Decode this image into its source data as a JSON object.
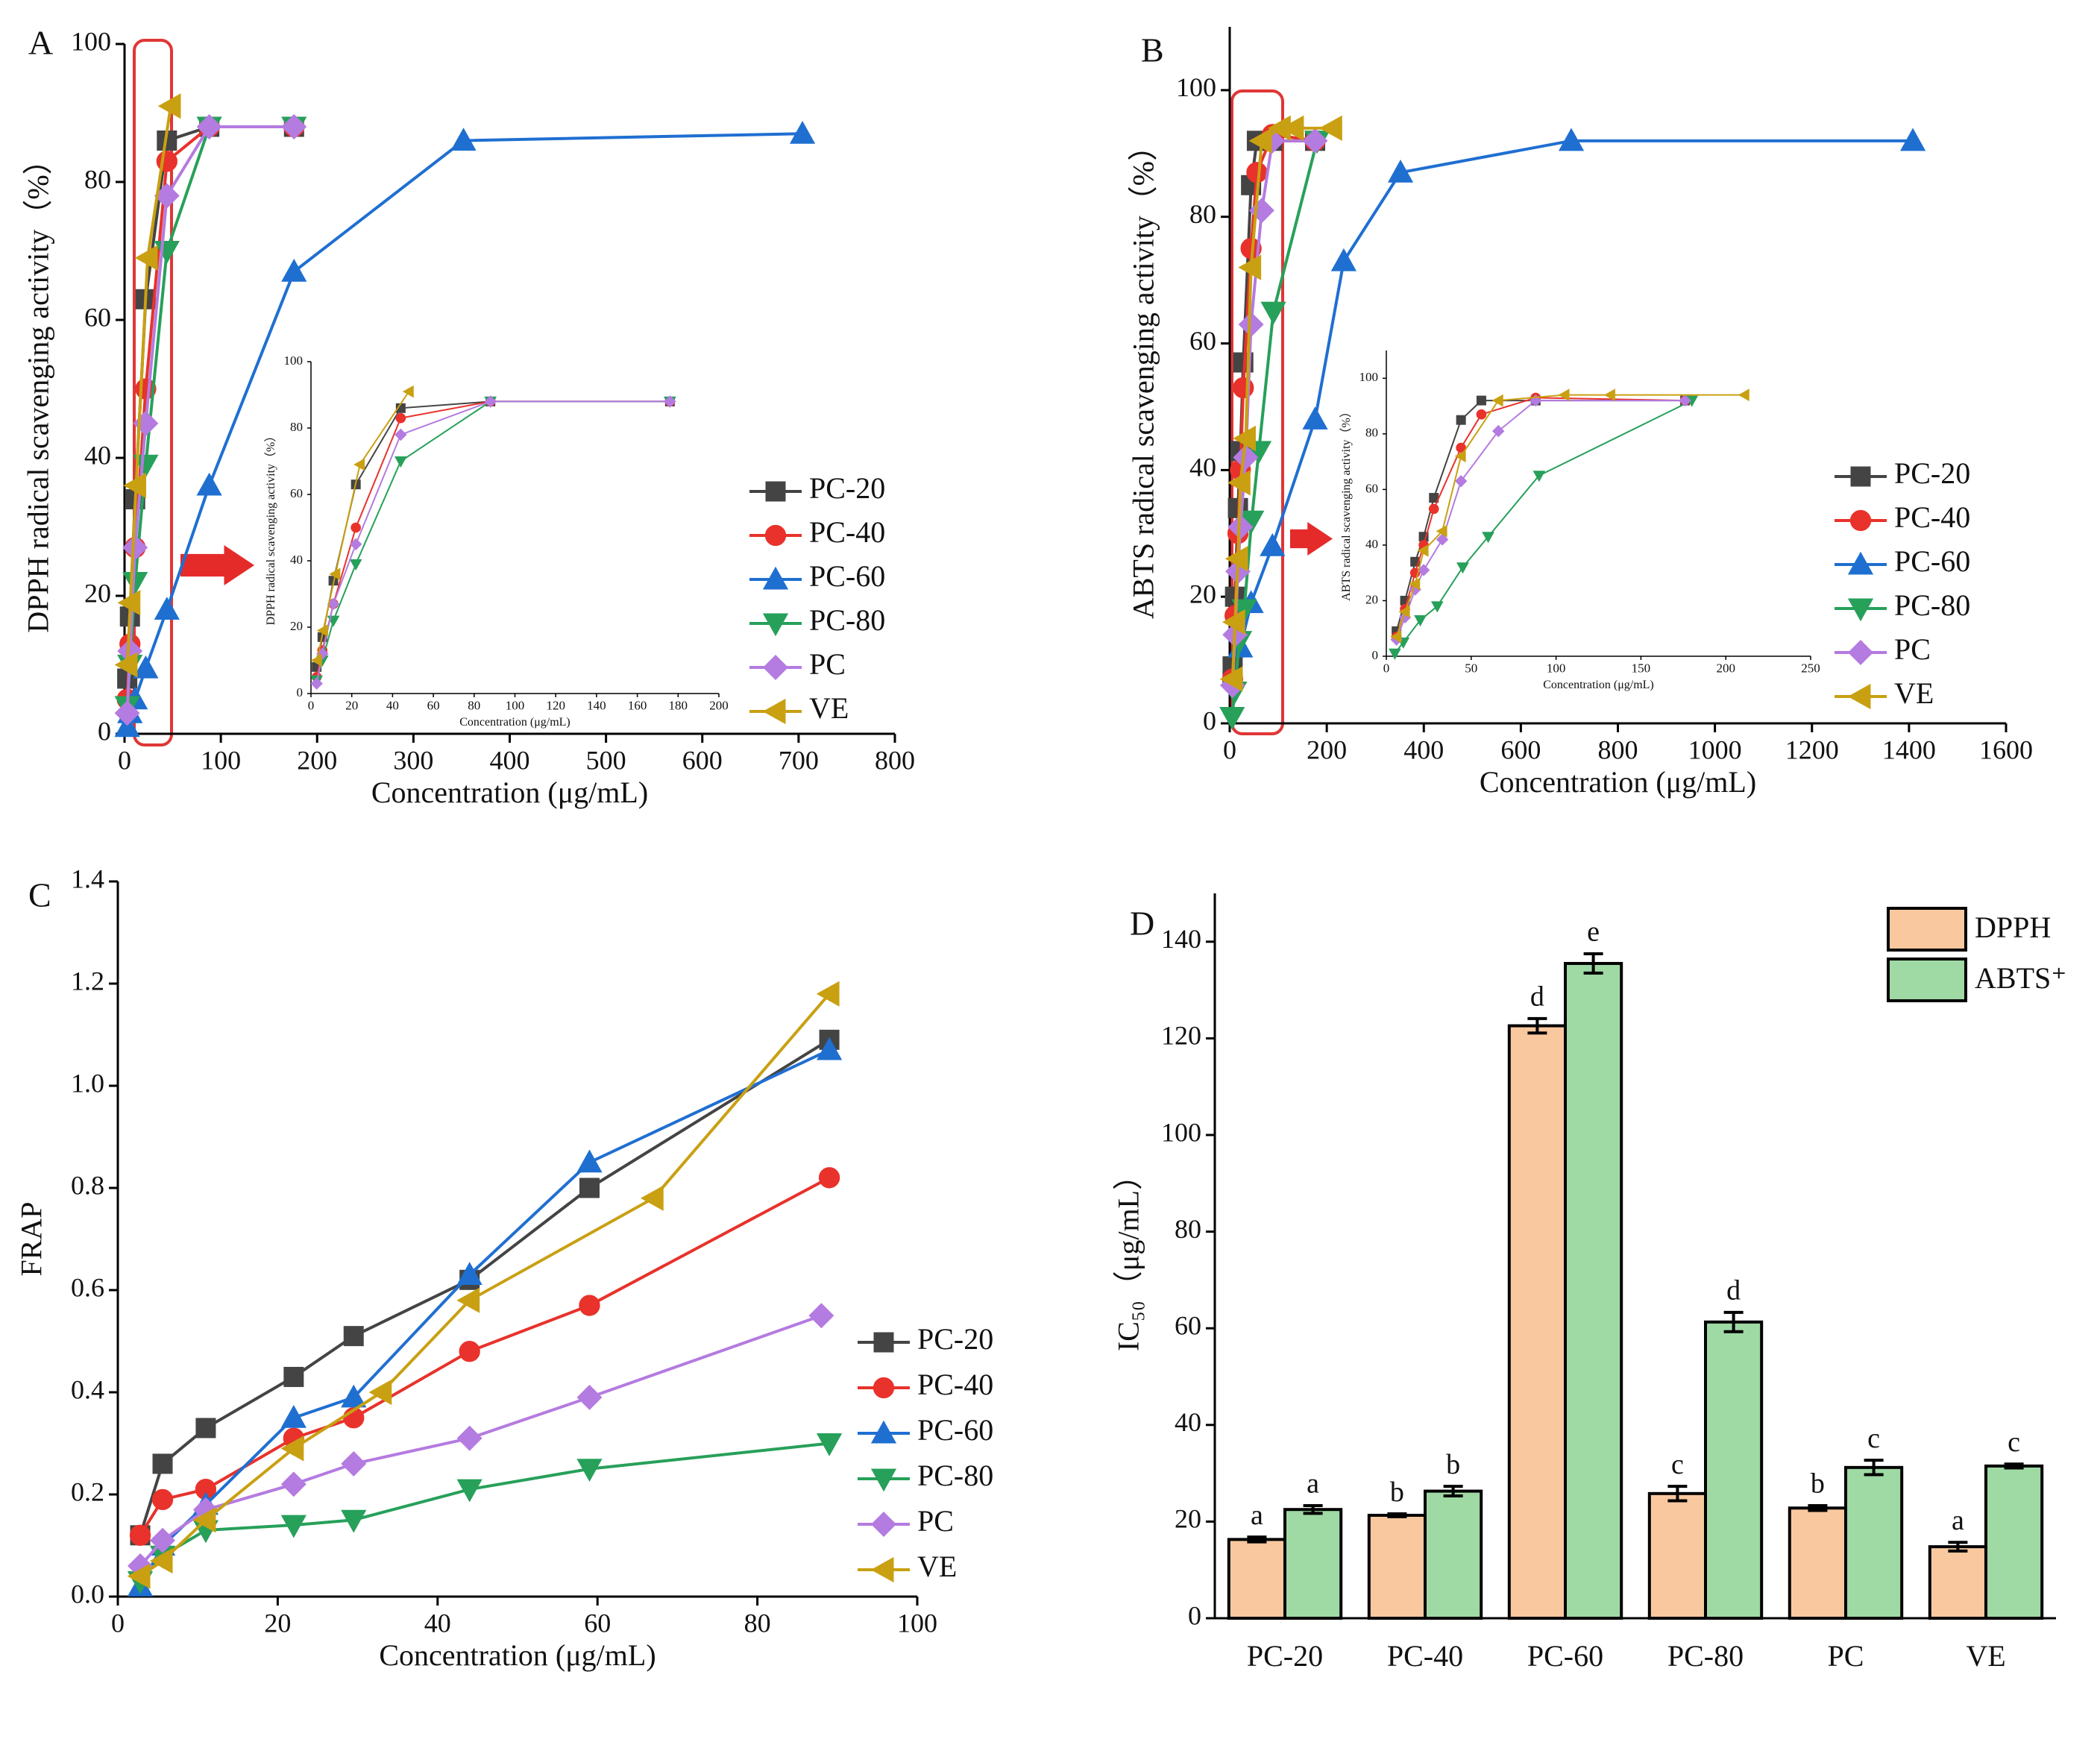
{
  "chart_data": [
    {
      "type": "line",
      "label": "A",
      "xlabel": "Concentration (μg/mL)",
      "ylabel": "DPPH radical scavenging activity（%）",
      "xlim": [
        0,
        800
      ],
      "xticks": [
        0,
        100,
        200,
        300,
        400,
        500,
        600,
        700,
        800
      ],
      "ylim": [
        0,
        100
      ],
      "yticks": [
        0,
        20,
        40,
        60,
        80,
        100
      ],
      "legend": true,
      "series": [
        {
          "name": "PC-20",
          "color": "#444444",
          "marker": "square",
          "x": [
            2.8,
            5.6,
            11,
            22,
            44,
            88,
            176
          ],
          "values": [
            8,
            17,
            34,
            63,
            86,
            88,
            88
          ]
        },
        {
          "name": "PC-40",
          "color": "#e8322b",
          "marker": "circle",
          "x": [
            2.8,
            5.6,
            11,
            22,
            44,
            88,
            176
          ],
          "values": [
            5,
            13,
            27,
            50,
            83,
            88,
            88
          ]
        },
        {
          "name": "PC-60",
          "color": "#1f6fd1",
          "marker": "tri-up",
          "x": [
            2.8,
            5.6,
            11,
            22,
            44,
            88,
            176,
            352,
            704
          ],
          "values": [
            1,
            3,
            5,
            9.5,
            18,
            36,
            67,
            86,
            87
          ]
        },
        {
          "name": "PC-80",
          "color": "#27a05a",
          "marker": "tri-down",
          "x": [
            2.8,
            5.6,
            11,
            22,
            44,
            88,
            176
          ],
          "values": [
            4,
            10,
            22,
            39,
            70,
            88,
            88
          ]
        },
        {
          "name": "PC",
          "color": "#b47be0",
          "marker": "diamond",
          "x": [
            2.8,
            5.6,
            11,
            22,
            44,
            88,
            176
          ],
          "values": [
            3,
            12,
            27,
            45,
            78,
            88,
            88
          ]
        },
        {
          "name": "VE",
          "color": "#c9a012",
          "marker": "tri-left",
          "x": [
            3,
            6,
            12,
            24,
            48
          ],
          "values": [
            10,
            19,
            36,
            69,
            91
          ]
        }
      ]
    },
    {
      "type": "line",
      "label": "B",
      "xlabel": "Concentration (μg/mL)",
      "ylabel": "ABTS radical scavenging activity（%）",
      "xlim": [
        0,
        1600
      ],
      "xticks": [
        0,
        200,
        400,
        600,
        800,
        1000,
        1200,
        1400,
        1600
      ],
      "ylim": [
        0,
        110
      ],
      "yticks": [
        0,
        20,
        40,
        60,
        80,
        100
      ],
      "legend": true,
      "series": [
        {
          "name": "PC-20",
          "color": "#444444",
          "marker": "square",
          "x": [
            6,
            11,
            17,
            22,
            28,
            44,
            56,
            88,
            176
          ],
          "values": [
            9,
            20,
            34,
            43,
            57,
            85,
            92,
            92,
            92
          ]
        },
        {
          "name": "PC-40",
          "color": "#e8322b",
          "marker": "circle",
          "x": [
            6,
            11,
            17,
            22,
            28,
            44,
            56,
            88,
            176
          ],
          "values": [
            7,
            17,
            30,
            40,
            53,
            75,
            87,
            93,
            92
          ]
        },
        {
          "name": "PC-60",
          "color": "#1f6fd1",
          "marker": "tri-up",
          "x": [
            22,
            44,
            88,
            176,
            235,
            352,
            704,
            1408
          ],
          "values": [
            12,
            19,
            28,
            48,
            73,
            87,
            92,
            92
          ]
        },
        {
          "name": "PC-80",
          "color": "#27a05a",
          "marker": "tri-down",
          "x": [
            5,
            10,
            20,
            30,
            45,
            60,
            90,
            180
          ],
          "values": [
            1,
            5,
            13,
            18,
            32,
            43,
            65,
            92
          ]
        },
        {
          "name": "PC",
          "color": "#b47be0",
          "marker": "diamond",
          "x": [
            6,
            11,
            17,
            22,
            33,
            44,
            66,
            88,
            176
          ],
          "values": [
            6,
            14,
            24,
            31,
            42,
            63,
            81,
            92,
            92
          ]
        },
        {
          "name": "VE",
          "color": "#c9a012",
          "marker": "tri-left",
          "x": [
            6,
            11,
            17,
            22,
            33,
            44,
            66,
            105,
            132,
            211
          ],
          "values": [
            7,
            16,
            26,
            38,
            45,
            72,
            92,
            94,
            94,
            94
          ]
        }
      ]
    },
    {
      "type": "line",
      "label": "C",
      "xlabel": "Concentration (μg/mL)",
      "ylabel": "FRAP",
      "xlim": [
        0,
        100
      ],
      "xticks": [
        0,
        20,
        40,
        60,
        80,
        100
      ],
      "ylim": [
        0,
        1.4
      ],
      "yticks": [
        {
          "value": 0,
          "label": "0.0"
        },
        0.2,
        0.4,
        0.6,
        0.8,
        {
          "value": 1,
          "label": "1.0"
        },
        1.2,
        1.4
      ],
      "legend": true,
      "series": [
        {
          "name": "PC-20",
          "color": "#444444",
          "marker": "square",
          "x": [
            2.8,
            5.6,
            11,
            22,
            29.5,
            44,
            59,
            89
          ],
          "values": [
            0.12,
            0.26,
            0.33,
            0.43,
            0.51,
            0.62,
            0.8,
            1.09
          ]
        },
        {
          "name": "PC-40",
          "color": "#e8322b",
          "marker": "circle",
          "x": [
            2.8,
            5.6,
            11,
            22,
            29.5,
            44,
            59,
            89
          ],
          "values": [
            0.12,
            0.19,
            0.21,
            0.31,
            0.35,
            0.48,
            0.57,
            0.82
          ]
        },
        {
          "name": "PC-60",
          "color": "#1f6fd1",
          "marker": "tri-up",
          "x": [
            2.8,
            5.6,
            11,
            22,
            29.5,
            44,
            59,
            89
          ],
          "values": [
            0.02,
            0.1,
            0.18,
            0.35,
            0.39,
            0.63,
            0.85,
            1.07
          ]
        },
        {
          "name": "PC-80",
          "color": "#27a05a",
          "marker": "tri-down",
          "x": [
            2.8,
            5.6,
            11,
            22,
            29.5,
            44,
            59,
            89
          ],
          "values": [
            0.03,
            0.08,
            0.13,
            0.14,
            0.15,
            0.21,
            0.25,
            0.3
          ]
        },
        {
          "name": "PC",
          "color": "#b47be0",
          "marker": "diamond",
          "x": [
            2.8,
            5.6,
            11,
            22,
            29.5,
            44,
            59,
            88
          ],
          "values": [
            0.06,
            0.11,
            0.17,
            0.22,
            0.26,
            0.31,
            0.39,
            0.55
          ]
        },
        {
          "name": "VE",
          "color": "#c9a012",
          "marker": "tri-left",
          "x": [
            2.8,
            5.6,
            11,
            22,
            33,
            44,
            67,
            89
          ],
          "values": [
            0.04,
            0.07,
            0.15,
            0.29,
            0.4,
            0.58,
            0.78,
            1.18
          ]
        }
      ]
    },
    {
      "type": "bar",
      "label": "D",
      "ylabel": "IC₅₀（μg/mL）",
      "categories": [
        "PC-20",
        "PC-40",
        "PC-60",
        "PC-80",
        "PC",
        "VE"
      ],
      "ylim": [
        0,
        150
      ],
      "yticks": [
        0,
        20,
        40,
        60,
        80,
        100,
        120,
        140
      ],
      "legend": true,
      "series": [
        {
          "name": "DPPH",
          "color": "#f9c89f",
          "values": [
            16.3,
            21.3,
            122.6,
            25.8,
            22.8,
            14.8
          ],
          "errors": [
            0.5,
            0.3,
            1.5,
            1.5,
            0.5,
            0.9
          ],
          "letters": [
            "a",
            "b",
            "d",
            "c",
            "b",
            "a"
          ]
        },
        {
          "name": "ABTS⁺",
          "color": "#9fd9a4",
          "values": [
            22.5,
            26.3,
            135.5,
            61.3,
            31.2,
            31.5
          ],
          "errors": [
            0.8,
            1,
            2,
            2,
            1.5,
            0.4
          ],
          "letters": [
            "a",
            "b",
            "e",
            "d",
            "c",
            "c"
          ]
        }
      ]
    },
    {
      "type": "line",
      "xlabel": "Concentration (μg/mL)",
      "ylabel": "DPPH radical scavenging activity（%）",
      "xlim": [
        0,
        200
      ],
      "xticks": [
        0,
        20,
        40,
        60,
        80,
        100,
        120,
        140,
        160,
        180,
        200
      ],
      "ylim": [
        0,
        100
      ],
      "yticks": [
        0,
        20,
        40,
        60,
        80,
        100
      ],
      "legend": false,
      "series": [
        {
          "name": "PC-20",
          "color": "#444444",
          "marker": "square",
          "x": [
            2.8,
            5.6,
            11,
            22,
            44,
            88,
            176
          ],
          "values": [
            8,
            17,
            34,
            63,
            86,
            88,
            88
          ]
        },
        {
          "name": "PC-40",
          "color": "#e8322b",
          "marker": "circle",
          "x": [
            2.8,
            5.6,
            11,
            22,
            44,
            88,
            176
          ],
          "values": [
            5,
            13,
            27,
            50,
            83,
            88,
            88
          ]
        },
        {
          "name": "PC-80",
          "color": "#27a05a",
          "marker": "tri-down",
          "x": [
            2.8,
            5.6,
            11,
            22,
            44,
            88,
            176
          ],
          "values": [
            4,
            10,
            22,
            39,
            70,
            88,
            88
          ]
        },
        {
          "name": "PC",
          "color": "#b47be0",
          "marker": "diamond",
          "x": [
            2.8,
            5.6,
            11,
            22,
            44,
            88,
            176
          ],
          "values": [
            3,
            12,
            27,
            45,
            78,
            88,
            88
          ]
        },
        {
          "name": "VE",
          "color": "#c9a012",
          "marker": "tri-left",
          "x": [
            3,
            6,
            12,
            24,
            48
          ],
          "values": [
            10,
            19,
            36,
            69,
            91
          ]
        }
      ]
    },
    {
      "type": "line",
      "xlabel": "Concentration (μg/mL)",
      "ylabel": "ABTS radical scavenging activity（%）",
      "xlim": [
        0,
        250
      ],
      "xticks": [
        0,
        50,
        100,
        150,
        200,
        250
      ],
      "ylim": [
        0,
        110
      ],
      "yticks": [
        0,
        20,
        40,
        60,
        80,
        100
      ],
      "legend": false,
      "series": [
        {
          "name": "PC-20",
          "color": "#444444",
          "marker": "square",
          "x": [
            6,
            11,
            17,
            22,
            28,
            44,
            56,
            88,
            176
          ],
          "values": [
            9,
            20,
            34,
            43,
            57,
            85,
            92,
            92,
            92
          ]
        },
        {
          "name": "PC-40",
          "color": "#e8322b",
          "marker": "circle",
          "x": [
            6,
            11,
            17,
            22,
            28,
            44,
            56,
            88,
            176
          ],
          "values": [
            7,
            17,
            30,
            40,
            53,
            75,
            87,
            93,
            92
          ]
        },
        {
          "name": "PC-80",
          "color": "#27a05a",
          "marker": "tri-down",
          "x": [
            5,
            10,
            20,
            30,
            45,
            60,
            90,
            180
          ],
          "values": [
            1,
            5,
            13,
            18,
            32,
            43,
            65,
            92
          ]
        },
        {
          "name": "PC",
          "color": "#b47be0",
          "marker": "diamond",
          "x": [
            6,
            11,
            17,
            22,
            33,
            44,
            66,
            88,
            176
          ],
          "values": [
            6,
            14,
            24,
            31,
            42,
            63,
            81,
            92,
            92
          ]
        },
        {
          "name": "VE",
          "color": "#c9a012",
          "marker": "tri-left",
          "x": [
            6,
            11,
            17,
            22,
            33,
            44,
            66,
            105,
            132,
            211
          ],
          "values": [
            7,
            16,
            26,
            38,
            45,
            72,
            92,
            94,
            94,
            94
          ]
        }
      ]
    }
  ]
}
